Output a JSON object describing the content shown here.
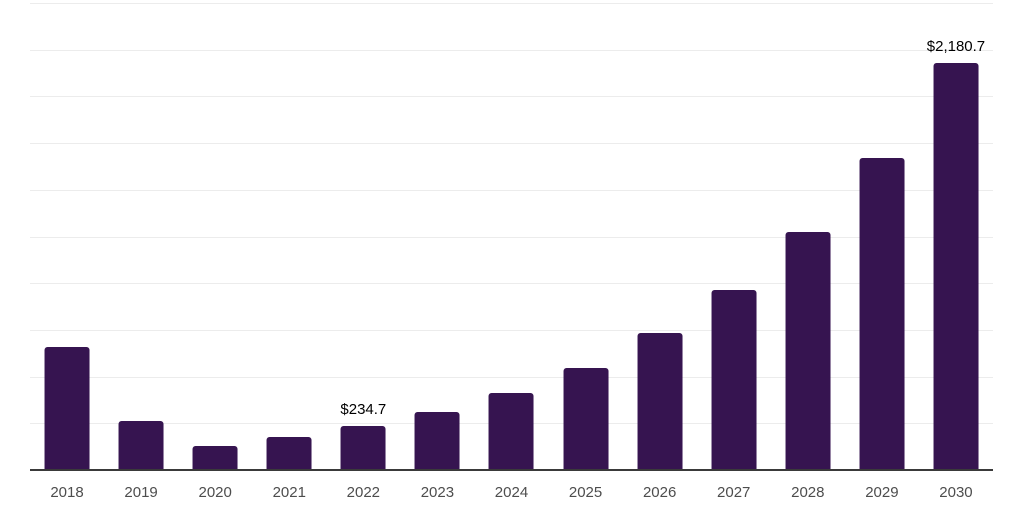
{
  "chart_data": {
    "type": "bar",
    "title": "",
    "xlabel": "",
    "ylabel": "",
    "categories": [
      "2018",
      "2019",
      "2020",
      "2021",
      "2022",
      "2023",
      "2024",
      "2025",
      "2026",
      "2027",
      "2028",
      "2029",
      "2030"
    ],
    "values": [
      657,
      263,
      130,
      178,
      234.7,
      312,
      410,
      548,
      733,
      965,
      1272,
      1671,
      2180.7
    ],
    "data_labels": [
      "",
      "",
      "",
      "",
      "$234.7",
      "",
      "",
      "",
      "",
      "",
      "",
      "",
      "$2,180.7"
    ],
    "ylim": [
      0,
      2500
    ],
    "grid_interval": 250,
    "grid": true,
    "legend": false,
    "y_tick_labels_visible": false,
    "colors": {
      "bar": "#361450",
      "gridline": "#ececec",
      "axis_line": "#3a3a3a",
      "tick_label": "#4d4d4d",
      "data_label": "#000000",
      "background": "#ffffff"
    }
  }
}
